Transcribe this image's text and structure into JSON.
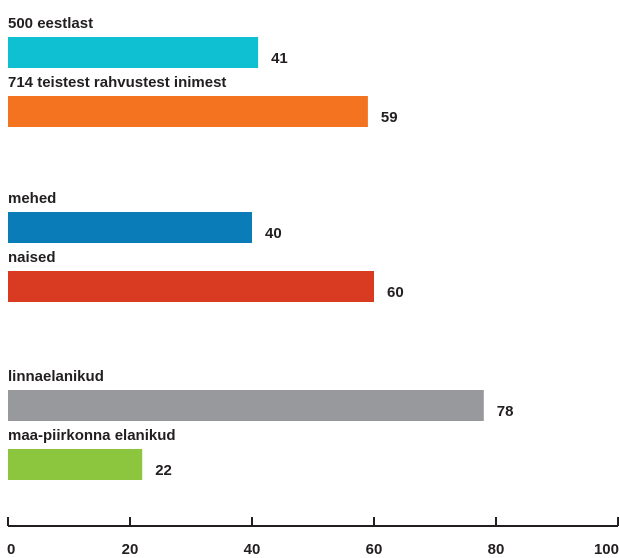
{
  "chart_data": {
    "type": "bar",
    "orientation": "horizontal",
    "title": "",
    "xlabel": "",
    "ylabel": "",
    "xlim": [
      0,
      100
    ],
    "x_ticks": [
      0,
      20,
      40,
      60,
      80,
      100
    ],
    "grid": false,
    "legend": "none",
    "value_labels": true,
    "groups": [
      {
        "bars": [
          {
            "label": "500 eestlast",
            "value": 41,
            "color": "#0fbfd2"
          },
          {
            "label": "714 teistest rahvustest inimest",
            "value": 59,
            "color": "#f47320"
          }
        ]
      },
      {
        "bars": [
          {
            "label": "mehed",
            "value": 40,
            "color": "#0a7db8"
          },
          {
            "label": "naised",
            "value": 60,
            "color": "#d93a22"
          }
        ]
      },
      {
        "bars": [
          {
            "label": "linnaelanikud",
            "value": 78,
            "color": "#98999d"
          },
          {
            "label": "maa-piirkonna elanikud",
            "value": 22,
            "color": "#8cc63f"
          }
        ]
      }
    ]
  }
}
